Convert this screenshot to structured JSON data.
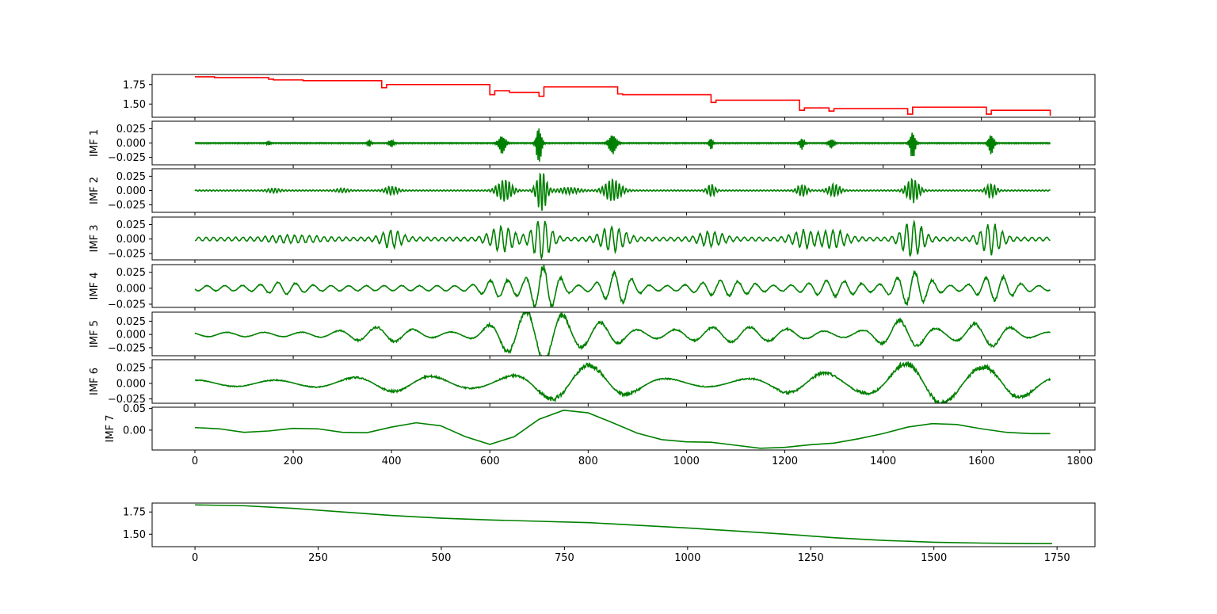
{
  "chart_data": [
    {
      "type": "line",
      "ylabel": "",
      "color": "#ff0000",
      "ylim": [
        1.33,
        1.88
      ],
      "xlim": [
        -87,
        1831
      ],
      "yticks": [
        {
          "v": 1.75,
          "label": "1.75"
        },
        {
          "v": 1.5,
          "label": "1.50"
        }
      ],
      "xticks": [
        0,
        200,
        400,
        600,
        800,
        1000,
        1200,
        1400,
        1600,
        1800
      ],
      "show_xticklabels": false,
      "series": [
        {
          "x": [
            0,
            40,
            150,
            160,
            220,
            380,
            390,
            600,
            610,
            640,
            700,
            710,
            860,
            870,
            1050,
            1060,
            1230,
            1240,
            1290,
            1300,
            1450,
            1460,
            1610,
            1620,
            1740
          ],
          "y": [
            1.85,
            1.84,
            1.82,
            1.81,
            1.8,
            1.71,
            1.75,
            1.62,
            1.67,
            1.65,
            1.6,
            1.72,
            1.63,
            1.62,
            1.52,
            1.55,
            1.42,
            1.45,
            1.41,
            1.44,
            1.37,
            1.46,
            1.37,
            1.42,
            1.35
          ]
        }
      ]
    },
    {
      "type": "line",
      "ylabel": "IMF 1",
      "color": "#008000",
      "ylim": [
        -0.038,
        0.038
      ],
      "xlim": [
        -87,
        1831
      ],
      "yticks": [
        {
          "v": 0.025,
          "label": "0.025"
        },
        {
          "v": 0.0,
          "label": "0.000"
        },
        {
          "v": -0.025,
          "label": "−0.025"
        }
      ],
      "xticks": [
        0,
        200,
        400,
        600,
        800,
        1000,
        1200,
        1400,
        1600,
        1800
      ],
      "show_xticklabels": false,
      "envelope": {
        "n": 1740,
        "period": 3,
        "base": 0.001,
        "bursts": [
          [
            150,
            0.003,
            4
          ],
          [
            355,
            0.005,
            4
          ],
          [
            400,
            0.007,
            5
          ],
          [
            625,
            0.016,
            8
          ],
          [
            700,
            0.036,
            6
          ],
          [
            850,
            0.018,
            9
          ],
          [
            1050,
            0.01,
            4
          ],
          [
            1235,
            0.01,
            5
          ],
          [
            1295,
            0.008,
            6
          ],
          [
            1460,
            0.025,
            6
          ],
          [
            1620,
            0.02,
            6
          ]
        ]
      }
    },
    {
      "type": "line",
      "ylabel": "IMF 2",
      "color": "#008000",
      "ylim": [
        -0.038,
        0.038
      ],
      "xlim": [
        -87,
        1831
      ],
      "yticks": [
        {
          "v": 0.025,
          "label": "0.025"
        },
        {
          "v": 0.0,
          "label": "0.000"
        },
        {
          "v": -0.025,
          "label": "−0.025"
        }
      ],
      "xticks": [
        0,
        200,
        400,
        600,
        800,
        1000,
        1200,
        1400,
        1600,
        1800
      ],
      "show_xticklabels": false,
      "envelope": {
        "n": 1740,
        "period": 7,
        "base": 0.001,
        "bursts": [
          [
            160,
            0.003,
            15
          ],
          [
            300,
            0.003,
            15
          ],
          [
            400,
            0.007,
            15
          ],
          [
            630,
            0.018,
            18
          ],
          [
            705,
            0.035,
            12
          ],
          [
            760,
            0.005,
            25
          ],
          [
            850,
            0.018,
            20
          ],
          [
            1050,
            0.01,
            10
          ],
          [
            1235,
            0.01,
            12
          ],
          [
            1300,
            0.01,
            15
          ],
          [
            1460,
            0.02,
            15
          ],
          [
            1620,
            0.012,
            12
          ]
        ]
      }
    },
    {
      "type": "line",
      "ylabel": "IMF 3",
      "color": "#008000",
      "ylim": [
        -0.036,
        0.038
      ],
      "xlim": [
        -87,
        1831
      ],
      "yticks": [
        {
          "v": 0.025,
          "label": "0.025"
        },
        {
          "v": 0.0,
          "label": "0.000"
        },
        {
          "v": -0.025,
          "label": "−0.025"
        }
      ],
      "xticks": [
        0,
        200,
        400,
        600,
        800,
        1000,
        1200,
        1400,
        1600,
        1800
      ],
      "show_xticklabels": false,
      "envelope": {
        "n": 1740,
        "period": 15,
        "base": 0.003,
        "bursts": [
          [
            200,
            0.004,
            60
          ],
          [
            400,
            0.012,
            25
          ],
          [
            625,
            0.018,
            30
          ],
          [
            705,
            0.032,
            22
          ],
          [
            850,
            0.018,
            30
          ],
          [
            1050,
            0.01,
            30
          ],
          [
            1240,
            0.012,
            30
          ],
          [
            1300,
            0.012,
            30
          ],
          [
            1460,
            0.028,
            25
          ],
          [
            1620,
            0.022,
            25
          ]
        ]
      }
    },
    {
      "type": "line",
      "ylabel": "IMF 4",
      "color": "#008000",
      "ylim": [
        -0.03,
        0.037
      ],
      "xlim": [
        -87,
        1831
      ],
      "yticks": [
        {
          "v": 0.025,
          "label": "0.025"
        },
        {
          "v": 0.0,
          "label": "0.000"
        },
        {
          "v": -0.025,
          "label": "−0.025"
        }
      ],
      "xticks": [
        0,
        200,
        400,
        600,
        800,
        1000,
        1200,
        1400,
        1600,
        1800
      ],
      "show_xticklabels": false,
      "envelope": {
        "n": 1740,
        "period": 36,
        "base": 0.004,
        "bursts": [
          [
            180,
            0.005,
            50
          ],
          [
            620,
            0.01,
            40
          ],
          [
            710,
            0.03,
            35
          ],
          [
            860,
            0.02,
            35
          ],
          [
            1080,
            0.008,
            60
          ],
          [
            1300,
            0.008,
            60
          ],
          [
            1460,
            0.022,
            40
          ],
          [
            1630,
            0.015,
            40
          ]
        ]
      }
    },
    {
      "type": "line",
      "ylabel": "IMF 5",
      "color": "#008000",
      "ylim": [
        -0.04,
        0.042
      ],
      "xlim": [
        -87,
        1831
      ],
      "yticks": [
        {
          "v": 0.025,
          "label": "0.025"
        },
        {
          "v": 0.0,
          "label": "0.000"
        },
        {
          "v": -0.025,
          "label": "−0.025"
        }
      ],
      "xticks": [
        0,
        200,
        400,
        600,
        800,
        1000,
        1200,
        1400,
        1600,
        1800
      ],
      "show_xticklabels": false,
      "envelope": {
        "n": 1740,
        "period": 76,
        "base": 0.004,
        "bursts": [
          [
            380,
            0.01,
            80
          ],
          [
            650,
            0.028,
            60
          ],
          [
            720,
            0.035,
            50
          ],
          [
            820,
            0.018,
            60
          ],
          [
            1100,
            0.01,
            150
          ],
          [
            1440,
            0.022,
            60
          ],
          [
            1610,
            0.018,
            60
          ]
        ]
      }
    },
    {
      "type": "line",
      "ylabel": "IMF 6",
      "color": "#008000",
      "ylim": [
        -0.032,
        0.038
      ],
      "xlim": [
        -87,
        1831
      ],
      "yticks": [
        {
          "v": 0.025,
          "label": "0.025"
        },
        {
          "v": 0.0,
          "label": "0.000"
        },
        {
          "v": -0.025,
          "label": "−0.025"
        }
      ],
      "xticks": [
        0,
        200,
        400,
        600,
        800,
        1000,
        1200,
        1400,
        1600,
        1800
      ],
      "show_xticklabels": false,
      "envelope": {
        "n": 1740,
        "period": 160,
        "base": 0.005,
        "bursts": [
          [
            420,
            0.008,
            120
          ],
          [
            780,
            0.025,
            120
          ],
          [
            1250,
            0.012,
            100
          ],
          [
            1480,
            0.03,
            100
          ],
          [
            1650,
            0.02,
            80
          ]
        ]
      }
    },
    {
      "type": "line",
      "ylabel": "IMF 7",
      "color": "#008000",
      "ylim": [
        -0.046,
        0.053
      ],
      "xlim": [
        -87,
        1831
      ],
      "yticks": [
        {
          "v": 0.0,
          "label": "0.00"
        },
        {
          "v": 0.05,
          "label": "0.05"
        }
      ],
      "xticks": [
        0,
        200,
        400,
        600,
        800,
        1000,
        1200,
        1400,
        1600,
        1800
      ],
      "show_xticklabels": true,
      "series": [
        {
          "x": [
            0,
            50,
            100,
            150,
            200,
            250,
            300,
            350,
            400,
            450,
            500,
            550,
            600,
            650,
            700,
            750,
            800,
            850,
            900,
            950,
            1000,
            1050,
            1100,
            1150,
            1200,
            1250,
            1300,
            1350,
            1400,
            1450,
            1500,
            1550,
            1600,
            1650,
            1700,
            1740
          ],
          "y": [
            0.006,
            0.003,
            -0.005,
            -0.002,
            0.004,
            0.003,
            -0.005,
            -0.006,
            0.007,
            0.017,
            0.01,
            -0.015,
            -0.033,
            -0.015,
            0.025,
            0.046,
            0.04,
            0.017,
            -0.007,
            -0.022,
            -0.027,
            -0.028,
            -0.035,
            -0.042,
            -0.04,
            -0.034,
            -0.03,
            -0.02,
            -0.008,
            0.007,
            0.015,
            0.013,
            0.003,
            -0.005,
            -0.008,
            -0.008
          ]
        }
      ]
    },
    {
      "type": "line",
      "ylabel": "",
      "color": "#008000",
      "ylim": [
        1.36,
        1.85
      ],
      "xlim": [
        -87,
        1827
      ],
      "yticks": [
        {
          "v": 1.75,
          "label": "1.75"
        },
        {
          "v": 1.5,
          "label": "1.50"
        }
      ],
      "xticks": [
        0,
        250,
        500,
        750,
        1000,
        1250,
        1500,
        1750
      ],
      "show_xticklabels": true,
      "series": [
        {
          "x": [
            0,
            100,
            200,
            300,
            400,
            500,
            600,
            700,
            800,
            900,
            1000,
            1100,
            1200,
            1300,
            1400,
            1500,
            1600,
            1700,
            1740
          ],
          "y": [
            1.83,
            1.82,
            1.79,
            1.75,
            1.71,
            1.68,
            1.66,
            1.645,
            1.63,
            1.6,
            1.57,
            1.535,
            1.5,
            1.46,
            1.43,
            1.41,
            1.4,
            1.395,
            1.395
          ]
        }
      ]
    }
  ]
}
